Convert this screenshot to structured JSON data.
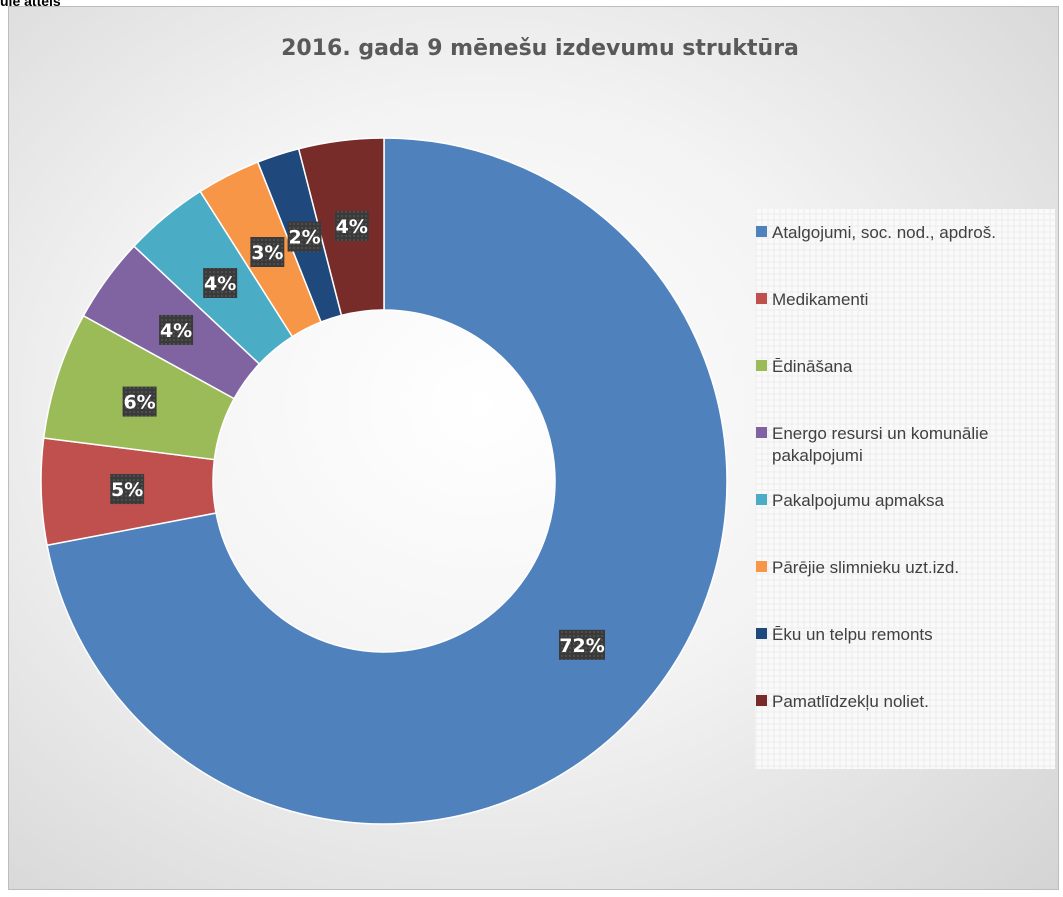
{
  "page": {
    "caption": "ule attēls"
  },
  "colors": {
    "Atalgojumi": "#4f81bd",
    "Medikamenti": "#c0504d",
    "Edinasana": "#9bbb59",
    "Energo": "#8064a2",
    "Pakalpojumu": "#4bacc6",
    "Parejie": "#f79646",
    "Eku": "#1f497d",
    "Pamatlidzeklu": "#772c2a"
  },
  "chart_data": {
    "type": "pie",
    "variant": "doughnut",
    "title": "2016. gada 9 mēnešu izdevumu struktūra",
    "categories": [
      "Atalgojumi, soc. nod., apdroš.",
      "Medikamenti",
      "Ēdināšana",
      "Energo resursi un komunālie pakalpojumi",
      "Pakalpojumu apmaksa",
      "Pārējie slimnieku uzt.izd.",
      "Ēku un telpu remonts",
      "Pamatlīdzekļu noliet."
    ],
    "values": [
      72,
      5,
      6,
      4,
      4,
      3,
      2,
      4
    ],
    "data_labels": [
      "72%",
      "5%",
      "6%",
      "4%",
      "4%",
      "3%",
      "2%",
      "4%"
    ],
    "unit": "%",
    "legend_position": "right",
    "legend_lines": [
      [
        "Atalgojumi, soc. nod., apdroš."
      ],
      [
        "Medikamenti"
      ],
      [
        "Ēdināšana"
      ],
      [
        "Energo resursi un komunālie",
        "pakalpojumi"
      ],
      [
        "Pakalpojumu apmaksa"
      ],
      [
        "Pārējie slimnieku uzt.izd."
      ],
      [
        "Ēku un telpu remonts"
      ],
      [
        "Pamatlīdzekļu noliet."
      ]
    ],
    "colors": [
      "#4f81bd",
      "#c0504d",
      "#9bbb59",
      "#8064a2",
      "#4bacc6",
      "#f79646",
      "#1f497d",
      "#772c2a"
    ]
  }
}
